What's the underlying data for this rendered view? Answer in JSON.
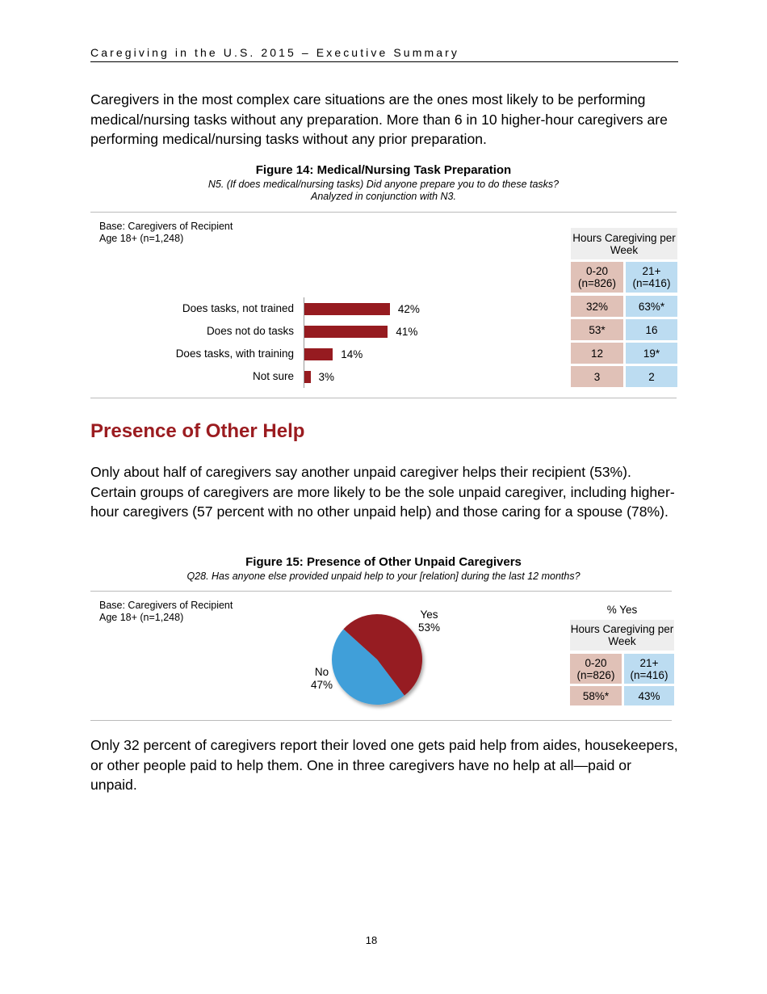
{
  "header": {
    "title": "Caregiving in the U.S. 2015 – Executive Summary"
  },
  "intro": "Caregivers in the most complex care situations are the ones most likely to be performing medical/nursing tasks without any preparation. More than 6 in 10 higher-hour caregivers are performing medical/nursing tasks without any prior preparation.",
  "fig14": {
    "title": "Figure 14: Medical/Nursing Task Preparation",
    "subtitle1": "N5. (If does medical/nursing tasks) Did anyone prepare you to do these tasks?",
    "subtitle2": "Analyzed in conjunction with N3.",
    "base1": "Base: Caregivers of Recipient",
    "base2": "Age 18+ (n=1,248)",
    "table": {
      "header": "Hours Caregiving per Week",
      "cols": [
        "0-20 (n=826)",
        "21+ (n=416)"
      ],
      "rows": [
        [
          "32%",
          "63%*"
        ],
        [
          "53*",
          "16"
        ],
        [
          "12",
          "19*"
        ],
        [
          "3",
          "2"
        ]
      ]
    }
  },
  "section": {
    "heading": "Presence of Other Help",
    "para": "Only about half of caregivers say another unpaid caregiver helps their recipient (53%). Certain groups of caregivers are more likely to be the sole unpaid caregiver, including higher-hour caregivers (57 percent with no other unpaid help) and those caring for a spouse (78%)."
  },
  "fig15": {
    "title": "Figure 15: Presence of Other Unpaid Caregivers",
    "subtitle": "Q28. Has anyone else provided unpaid help to your [relation] during the last 12 months?",
    "base1": "Base: Caregivers of Recipient",
    "base2": "Age 18+ (n=1,248)",
    "table": {
      "caption": "% Yes",
      "header": "Hours Caregiving per Week",
      "cols": [
        "0-20 (n=826)",
        "21+ (n=416)"
      ],
      "row": [
        "58%*",
        "43%"
      ]
    }
  },
  "closing": "Only 32 percent of caregivers report their loved one gets paid help from aides, housekeepers, or other people paid to help them. One in three caregivers have no help at all—paid or unpaid.",
  "page_number": "18",
  "colors": {
    "bar": "#961b20",
    "pie_yes": "#961b20",
    "pie_no": "#419fd9",
    "col_0_20": "#e0c1b7",
    "col_21": "#bcdcf1",
    "heading": "#9b1c20"
  },
  "chart_data": [
    {
      "type": "bar",
      "orientation": "horizontal",
      "categories": [
        "Does tasks, not trained",
        "Does not do tasks",
        "Does tasks, with training",
        "Not sure"
      ],
      "values": [
        42,
        41,
        14,
        3
      ],
      "labels": [
        "42%",
        "41%",
        "14%",
        "3%"
      ]
    },
    {
      "type": "pie",
      "categories": [
        "Yes",
        "No"
      ],
      "values": [
        53,
        47
      ],
      "labels": [
        "53%",
        "47%"
      ]
    }
  ]
}
